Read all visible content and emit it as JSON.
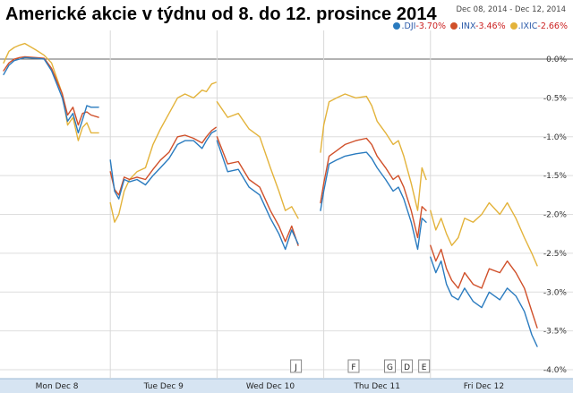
{
  "title": "Americké akcie v týdnu od 8. do 12. prosince 2014",
  "date_range": "Dec 08, 2014  -  Dec 12, 2014",
  "legend": [
    {
      "symbol": ".DJI",
      "change": "-3.70%",
      "color": "#2a7bbf"
    },
    {
      "symbol": ".INX",
      "change": "-3.46%",
      "color": "#d0502a"
    },
    {
      "symbol": ".IXIC",
      "change": "-2.66%",
      "color": "#e3b33b"
    }
  ],
  "news_flags": [
    {
      "label": "J",
      "day": 2.74
    },
    {
      "label": "F",
      "day": 3.28
    },
    {
      "label": "G",
      "day": 3.62
    },
    {
      "label": "D",
      "day": 3.78
    },
    {
      "label": "E",
      "day": 3.94
    }
  ],
  "chart_data": {
    "type": "line",
    "title": "Americké akcie v týdnu od 8. do 12. prosince 2014",
    "xlabel": "",
    "ylabel": "",
    "x_ticks": [
      "Mon Dec 8",
      "Tue Dec 9",
      "Wed Dec 10",
      "Thu Dec 11",
      "Fri Dec 12"
    ],
    "y_ticks": [
      "0.0%",
      "-0.5%",
      "-1.0%",
      "-1.5%",
      "-2.0%",
      "-2.5%",
      "-3.0%",
      "-3.5%",
      "-4.0%"
    ],
    "ylim": [
      -4.0,
      0.3
    ],
    "grid": true,
    "legend_position": "top-right",
    "x_unit": "trading day (0 = Mon Dec 8 open, 5 = Fri Dec 12 close)",
    "series": [
      {
        "name": ".DJI",
        "change": "-3.70%",
        "color": "#2a7bbf",
        "segments": [
          [
            [
              0.0,
              -0.2
            ],
            [
              0.05,
              -0.08
            ],
            [
              0.1,
              -0.02
            ],
            [
              0.15,
              0.0
            ],
            [
              0.2,
              0.02
            ],
            [
              0.3,
              0.01
            ],
            [
              0.38,
              0.0
            ],
            [
              0.45,
              -0.15
            ],
            [
              0.55,
              -0.5
            ],
            [
              0.6,
              -0.8
            ],
            [
              0.65,
              -0.7
            ],
            [
              0.7,
              -0.95
            ],
            [
              0.74,
              -0.78
            ],
            [
              0.78,
              -0.6
            ],
            [
              0.82,
              -0.62
            ],
            [
              0.89,
              -0.62
            ]
          ],
          [
            [
              1.0,
              -1.3
            ],
            [
              1.04,
              -1.7
            ],
            [
              1.08,
              -1.8
            ],
            [
              1.13,
              -1.55
            ],
            [
              1.18,
              -1.58
            ],
            [
              1.25,
              -1.55
            ],
            [
              1.33,
              -1.62
            ],
            [
              1.4,
              -1.5
            ],
            [
              1.47,
              -1.4
            ],
            [
              1.55,
              -1.28
            ],
            [
              1.63,
              -1.1
            ],
            [
              1.7,
              -1.05
            ],
            [
              1.78,
              -1.05
            ],
            [
              1.86,
              -1.15
            ],
            [
              1.9,
              -1.05
            ],
            [
              1.95,
              -0.95
            ],
            [
              1.99,
              -0.92
            ]
          ],
          [
            [
              2.0,
              -1.05
            ],
            [
              2.1,
              -1.45
            ],
            [
              2.2,
              -1.42
            ],
            [
              2.3,
              -1.65
            ],
            [
              2.4,
              -1.75
            ],
            [
              2.5,
              -2.05
            ],
            [
              2.58,
              -2.25
            ],
            [
              2.64,
              -2.45
            ],
            [
              2.7,
              -2.2
            ],
            [
              2.76,
              -2.38
            ]
          ],
          [
            [
              2.97,
              -1.95
            ],
            [
              3.0,
              -1.7
            ],
            [
              3.05,
              -1.35
            ],
            [
              3.12,
              -1.3
            ],
            [
              3.2,
              -1.25
            ],
            [
              3.3,
              -1.22
            ],
            [
              3.4,
              -1.2
            ],
            [
              3.45,
              -1.28
            ],
            [
              3.5,
              -1.4
            ],
            [
              3.58,
              -1.55
            ],
            [
              3.65,
              -1.7
            ],
            [
              3.7,
              -1.65
            ],
            [
              3.75,
              -1.8
            ],
            [
              3.82,
              -2.1
            ],
            [
              3.88,
              -2.45
            ],
            [
              3.92,
              -2.05
            ],
            [
              3.96,
              -2.1
            ]
          ],
          [
            [
              4.0,
              -2.55
            ],
            [
              4.05,
              -2.75
            ],
            [
              4.1,
              -2.6
            ],
            [
              4.15,
              -2.9
            ],
            [
              4.2,
              -3.05
            ],
            [
              4.26,
              -3.1
            ],
            [
              4.32,
              -2.95
            ],
            [
              4.4,
              -3.12
            ],
            [
              4.48,
              -3.2
            ],
            [
              4.55,
              -3.0
            ],
            [
              4.65,
              -3.1
            ],
            [
              4.72,
              -2.95
            ],
            [
              4.8,
              -3.05
            ],
            [
              4.88,
              -3.25
            ],
            [
              4.95,
              -3.55
            ],
            [
              5.0,
              -3.7
            ]
          ]
        ]
      },
      {
        "name": ".INX",
        "change": "-3.46%",
        "color": "#d0502a",
        "segments": [
          [
            [
              0.0,
              -0.15
            ],
            [
              0.05,
              -0.05
            ],
            [
              0.1,
              0.0
            ],
            [
              0.15,
              0.02
            ],
            [
              0.2,
              0.03
            ],
            [
              0.3,
              0.02
            ],
            [
              0.38,
              0.01
            ],
            [
              0.45,
              -0.12
            ],
            [
              0.55,
              -0.45
            ],
            [
              0.6,
              -0.72
            ],
            [
              0.65,
              -0.62
            ],
            [
              0.7,
              -0.85
            ],
            [
              0.74,
              -0.7
            ],
            [
              0.78,
              -0.68
            ],
            [
              0.82,
              -0.72
            ],
            [
              0.89,
              -0.75
            ]
          ],
          [
            [
              1.0,
              -1.45
            ],
            [
              1.04,
              -1.68
            ],
            [
              1.08,
              -1.75
            ],
            [
              1.13,
              -1.52
            ],
            [
              1.18,
              -1.55
            ],
            [
              1.25,
              -1.52
            ],
            [
              1.33,
              -1.55
            ],
            [
              1.4,
              -1.42
            ],
            [
              1.47,
              -1.3
            ],
            [
              1.55,
              -1.2
            ],
            [
              1.63,
              -1.0
            ],
            [
              1.7,
              -0.98
            ],
            [
              1.78,
              -1.02
            ],
            [
              1.86,
              -1.08
            ],
            [
              1.9,
              -1.0
            ],
            [
              1.95,
              -0.92
            ],
            [
              1.99,
              -0.88
            ]
          ],
          [
            [
              2.0,
              -1.0
            ],
            [
              2.1,
              -1.35
            ],
            [
              2.2,
              -1.32
            ],
            [
              2.3,
              -1.55
            ],
            [
              2.4,
              -1.65
            ],
            [
              2.5,
              -1.95
            ],
            [
              2.58,
              -2.15
            ],
            [
              2.64,
              -2.35
            ],
            [
              2.7,
              -2.15
            ],
            [
              2.76,
              -2.4
            ]
          ],
          [
            [
              2.97,
              -1.85
            ],
            [
              3.0,
              -1.6
            ],
            [
              3.05,
              -1.25
            ],
            [
              3.12,
              -1.18
            ],
            [
              3.2,
              -1.1
            ],
            [
              3.3,
              -1.05
            ],
            [
              3.4,
              -1.02
            ],
            [
              3.45,
              -1.1
            ],
            [
              3.5,
              -1.25
            ],
            [
              3.58,
              -1.4
            ],
            [
              3.65,
              -1.55
            ],
            [
              3.7,
              -1.5
            ],
            [
              3.75,
              -1.65
            ],
            [
              3.82,
              -1.95
            ],
            [
              3.88,
              -2.3
            ],
            [
              3.92,
              -1.9
            ],
            [
              3.96,
              -1.95
            ]
          ],
          [
            [
              4.0,
              -2.4
            ],
            [
              4.05,
              -2.6
            ],
            [
              4.1,
              -2.45
            ],
            [
              4.15,
              -2.7
            ],
            [
              4.2,
              -2.85
            ],
            [
              4.26,
              -2.95
            ],
            [
              4.32,
              -2.75
            ],
            [
              4.4,
              -2.9
            ],
            [
              4.48,
              -2.95
            ],
            [
              4.55,
              -2.7
            ],
            [
              4.65,
              -2.75
            ],
            [
              4.72,
              -2.6
            ],
            [
              4.8,
              -2.75
            ],
            [
              4.88,
              -2.95
            ],
            [
              4.95,
              -3.25
            ],
            [
              5.0,
              -3.46
            ]
          ]
        ]
      },
      {
        "name": ".IXIC",
        "change": "-2.66%",
        "color": "#e3b33b",
        "segments": [
          [
            [
              0.0,
              -0.05
            ],
            [
              0.05,
              0.1
            ],
            [
              0.1,
              0.15
            ],
            [
              0.15,
              0.18
            ],
            [
              0.2,
              0.2
            ],
            [
              0.3,
              0.12
            ],
            [
              0.38,
              0.05
            ],
            [
              0.45,
              -0.05
            ],
            [
              0.55,
              -0.45
            ],
            [
              0.6,
              -0.85
            ],
            [
              0.65,
              -0.75
            ],
            [
              0.7,
              -1.05
            ],
            [
              0.74,
              -0.88
            ],
            [
              0.78,
              -0.82
            ],
            [
              0.82,
              -0.95
            ],
            [
              0.89,
              -0.95
            ]
          ],
          [
            [
              1.0,
              -1.85
            ],
            [
              1.04,
              -2.1
            ],
            [
              1.08,
              -2.0
            ],
            [
              1.13,
              -1.7
            ],
            [
              1.18,
              -1.55
            ],
            [
              1.25,
              -1.45
            ],
            [
              1.33,
              -1.4
            ],
            [
              1.4,
              -1.1
            ],
            [
              1.47,
              -0.9
            ],
            [
              1.55,
              -0.7
            ],
            [
              1.63,
              -0.5
            ],
            [
              1.7,
              -0.45
            ],
            [
              1.78,
              -0.5
            ],
            [
              1.86,
              -0.4
            ],
            [
              1.9,
              -0.42
            ],
            [
              1.95,
              -0.32
            ],
            [
              1.99,
              -0.3
            ]
          ],
          [
            [
              2.0,
              -0.55
            ],
            [
              2.1,
              -0.75
            ],
            [
              2.2,
              -0.7
            ],
            [
              2.3,
              -0.9
            ],
            [
              2.4,
              -1.0
            ],
            [
              2.5,
              -1.4
            ],
            [
              2.58,
              -1.7
            ],
            [
              2.64,
              -1.95
            ],
            [
              2.7,
              -1.9
            ],
            [
              2.76,
              -2.05
            ]
          ],
          [
            [
              2.97,
              -1.2
            ],
            [
              3.0,
              -0.85
            ],
            [
              3.05,
              -0.55
            ],
            [
              3.12,
              -0.5
            ],
            [
              3.2,
              -0.45
            ],
            [
              3.3,
              -0.5
            ],
            [
              3.4,
              -0.48
            ],
            [
              3.45,
              -0.6
            ],
            [
              3.5,
              -0.8
            ],
            [
              3.58,
              -0.95
            ],
            [
              3.65,
              -1.1
            ],
            [
              3.7,
              -1.05
            ],
            [
              3.75,
              -1.25
            ],
            [
              3.82,
              -1.6
            ],
            [
              3.88,
              -1.95
            ],
            [
              3.92,
              -1.4
            ],
            [
              3.96,
              -1.55
            ]
          ],
          [
            [
              4.0,
              -1.95
            ],
            [
              4.05,
              -2.2
            ],
            [
              4.1,
              -2.05
            ],
            [
              4.15,
              -2.25
            ],
            [
              4.2,
              -2.4
            ],
            [
              4.26,
              -2.3
            ],
            [
              4.32,
              -2.05
            ],
            [
              4.4,
              -2.1
            ],
            [
              4.48,
              -2.0
            ],
            [
              4.55,
              -1.85
            ],
            [
              4.65,
              -2.0
            ],
            [
              4.72,
              -1.85
            ],
            [
              4.8,
              -2.05
            ],
            [
              4.88,
              -2.3
            ],
            [
              4.95,
              -2.5
            ],
            [
              5.0,
              -2.66
            ]
          ]
        ]
      }
    ]
  }
}
